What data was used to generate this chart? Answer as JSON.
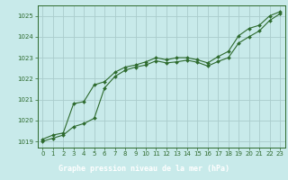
{
  "title": "Graphe pression niveau de la mer (hPa)",
  "xlabel_ticks": [
    0,
    1,
    2,
    3,
    4,
    5,
    6,
    7,
    8,
    9,
    10,
    11,
    12,
    13,
    14,
    15,
    16,
    17,
    18,
    19,
    20,
    21,
    22,
    23
  ],
  "ylim": [
    1018.7,
    1025.5
  ],
  "xlim": [
    -0.5,
    23.5
  ],
  "yticks": [
    1019,
    1020,
    1021,
    1022,
    1023,
    1024,
    1025
  ],
  "bg_color": "#c8eaea",
  "grid_color": "#aacccc",
  "line1_x": [
    0,
    1,
    2,
    3,
    4,
    5,
    6,
    7,
    8,
    9,
    10,
    11,
    12,
    13,
    14,
    15,
    16,
    17,
    18,
    19,
    20,
    21,
    22,
    23
  ],
  "line1_y": [
    1019.1,
    1019.3,
    1019.4,
    1020.8,
    1020.9,
    1021.7,
    1021.85,
    1022.3,
    1022.55,
    1022.65,
    1022.8,
    1023.0,
    1022.9,
    1023.0,
    1023.0,
    1022.9,
    1022.75,
    1023.05,
    1023.3,
    1024.05,
    1024.4,
    1024.55,
    1025.0,
    1025.2
  ],
  "line2_x": [
    0,
    1,
    2,
    3,
    4,
    5,
    6,
    7,
    8,
    9,
    10,
    11,
    12,
    13,
    14,
    15,
    16,
    17,
    18,
    19,
    20,
    21,
    22,
    23
  ],
  "line2_y": [
    1019.0,
    1019.15,
    1019.3,
    1019.7,
    1019.85,
    1020.1,
    1021.55,
    1022.1,
    1022.4,
    1022.55,
    1022.65,
    1022.85,
    1022.75,
    1022.8,
    1022.88,
    1022.78,
    1022.6,
    1022.82,
    1023.0,
    1023.7,
    1024.0,
    1024.28,
    1024.78,
    1025.1
  ],
  "line_color": "#2d6a2d",
  "marker": "D",
  "marker_size": 2.0,
  "line_width": 0.8,
  "title_bg": "#2d6a2d",
  "label_color": "#ffffff",
  "title_fontsize": 6.0,
  "tick_fontsize": 5.0
}
